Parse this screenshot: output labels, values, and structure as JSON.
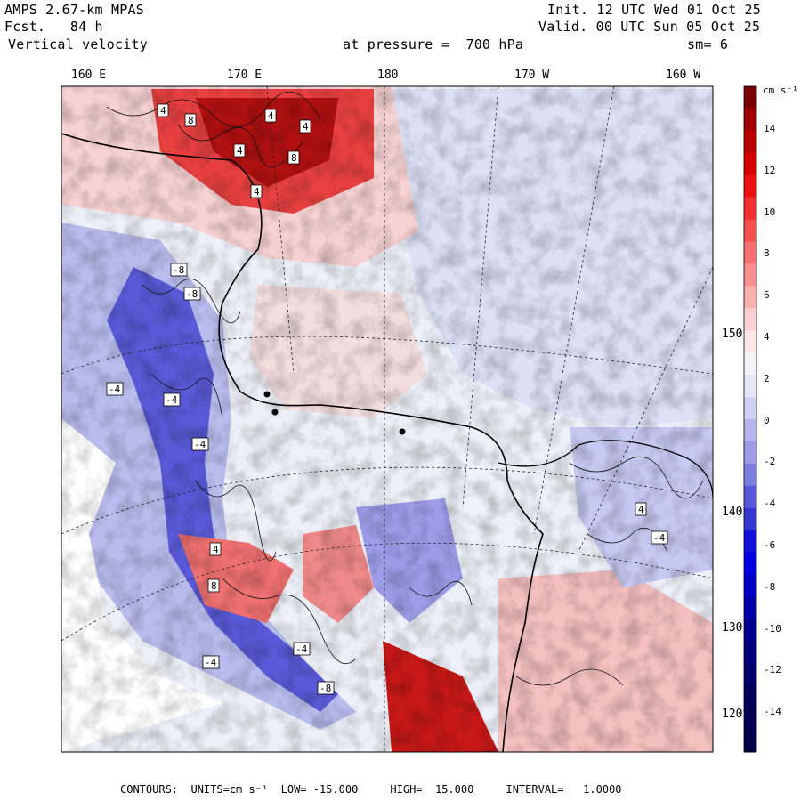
{
  "header": {
    "model": "AMPS 2.67-km MPAS",
    "forecast": "Fcst.   84 h",
    "field": "Vertical velocity",
    "init": "Init. 12 UTC Wed 01 Oct 25",
    "valid": "Valid. 00 UTC Sun 05 Oct 25",
    "level": "at pressure =  700 hPa",
    "smoothing": "sm= 6"
  },
  "longitude_ticks": [
    "160 E",
    "170 E",
    "180",
    "170 W",
    "160 W"
  ],
  "right_ticks": [
    "150 W",
    "140 W",
    "130 W",
    "120 W"
  ],
  "colorbar": {
    "units": "cm s⁻¹",
    "labels": [
      "14",
      "12",
      "10",
      "8",
      "6",
      "4",
      "2",
      "0",
      "-2",
      "-4",
      "-6",
      "-8",
      "-10",
      "-12",
      "-14"
    ],
    "colors": [
      "#7a0000",
      "#9c0000",
      "#b80000",
      "#d40000",
      "#e81010",
      "#f03030",
      "#f55050",
      "#f77070",
      "#f99090",
      "#fbb0b0",
      "#fcd0d0",
      "#fde6e6",
      "#f3f3f6",
      "#e6e6f6",
      "#d0d0f4",
      "#b6b6ef",
      "#9c9ce8",
      "#7c7ce0",
      "#5858d8",
      "#3535d0",
      "#1010d8",
      "#0000e0",
      "#0000c4",
      "#0000a8",
      "#000090",
      "#00007c",
      "#00006a",
      "#00005a",
      "#000050",
      "#000048"
    ]
  },
  "map_labels": {
    "pos": [
      "4",
      "8",
      "4",
      "4",
      "8",
      "4",
      "4",
      "8",
      "4",
      "4"
    ],
    "neg": [
      "-8",
      "-8",
      "-4",
      "-4",
      "-4",
      "-4",
      "-4",
      "-8",
      "-4"
    ]
  },
  "footer": {
    "contours": "CONTOURS:  UNITS=cm s⁻¹  LOW= -15.000     HIGH=  15.000     INTERVAL=   1.0000"
  }
}
